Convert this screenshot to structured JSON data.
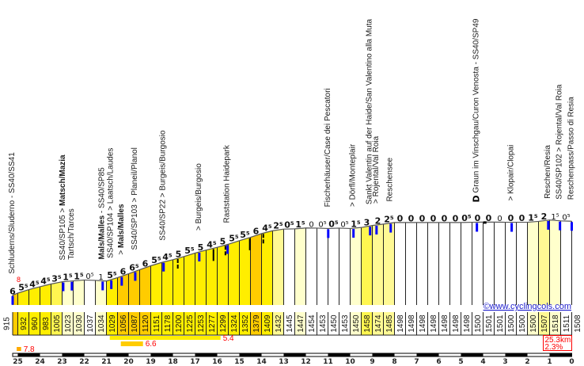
{
  "chart_data": {
    "type": "area",
    "title": "",
    "xlabel": "",
    "ylabel": "",
    "distance_km": 25.3,
    "step_km": 0.5,
    "start": {
      "km": 25.3,
      "elevation": 915
    },
    "first_segment": {
      "gradient_label": "6",
      "max_gradient_label": "8"
    },
    "elevations": [
      932,
      960,
      983,
      1005,
      1023,
      1030,
      1037,
      1034,
      1029,
      1056,
      1087,
      1120,
      1151,
      1178,
      1200,
      1225,
      1253,
      1277,
      1299,
      1324,
      1352,
      1379,
      1409,
      1432,
      1445,
      1447,
      1454,
      1453,
      1450,
      1453,
      1450,
      1458,
      1474,
      1485,
      1498,
      1498,
      1498,
      1498,
      1498,
      1498,
      1498,
      1500,
      1501,
      1501,
      1500,
      1500,
      1500,
      1507,
      1518,
      1511,
      1508
    ],
    "gradient_labels": [
      "5⁵",
      "4⁵",
      "4⁵",
      "3⁵",
      "1⁵",
      "1⁵",
      "0⁵",
      "1",
      "5⁵",
      "6",
      "6⁵",
      "6",
      "5⁵",
      "4⁵",
      "5",
      "5⁵",
      "5",
      "4⁵",
      "5",
      "5⁵",
      "5⁵",
      "6",
      "4⁵",
      "2⁵",
      "0⁵",
      "1⁵",
      "0",
      "0⁵",
      "0⁵",
      "0⁵",
      "1⁵",
      "3",
      "2",
      "2⁵",
      "0",
      "0",
      "0",
      "0",
      "0",
      "0",
      "0⁵",
      "0",
      "0",
      "0",
      "0",
      "0",
      "1⁵",
      "2",
      "1⁵",
      "0⁵"
    ],
    "km_ticks": [
      "25",
      "24",
      "23",
      "22",
      "21",
      "20",
      "19",
      "18",
      "17",
      "16",
      "15",
      "14",
      "13",
      "12",
      "11",
      "10",
      "9",
      "8",
      "7",
      "6",
      "5",
      "4",
      "3",
      "2",
      "1",
      "0"
    ],
    "color_scale": [
      {
        "min": 6,
        "color": "#FFCC00"
      },
      {
        "min": 4.5,
        "color": "#FFEE00"
      },
      {
        "min": 3,
        "color": "#FFF650"
      },
      {
        "min": 2,
        "color": "#FFF994"
      },
      {
        "min": 1,
        "color": "#FFFFCC"
      },
      {
        "min": 0,
        "color": "#FFFFFF"
      }
    ],
    "marker_colors": {
      "blue": "#0000FF",
      "black": "#000000"
    },
    "markers": [
      {
        "km": 25.3,
        "type": "blue"
      },
      {
        "km": 22.95,
        "type": "blue"
      },
      {
        "km": 22.56,
        "type": "blue"
      },
      {
        "km": 21.17,
        "type": "blue"
      },
      {
        "km": 20.78,
        "type": "blue"
      },
      {
        "km": 20.31,
        "type": "blue"
      },
      {
        "km": 19.7,
        "type": "blue"
      },
      {
        "km": 18.42,
        "type": "blue"
      },
      {
        "km": 17.78,
        "type": "black-dashed"
      },
      {
        "km": 16.81,
        "type": "blue"
      },
      {
        "km": 16.17,
        "type": "black"
      },
      {
        "km": 15.63,
        "type": "black-dashed"
      },
      {
        "km": 15.53,
        "type": "blue"
      },
      {
        "km": 14.53,
        "type": "black"
      },
      {
        "km": 13.92,
        "type": "black-dashed"
      },
      {
        "km": 10.99,
        "type": "blue"
      },
      {
        "km": 9.85,
        "type": "blue"
      },
      {
        "km": 9.1,
        "type": "blue"
      },
      {
        "km": 8.81,
        "type": "blue"
      },
      {
        "km": 8.17,
        "type": "blue"
      },
      {
        "km": 4.28,
        "type": "blue"
      },
      {
        "km": 3.92,
        "type": "black-dot"
      },
      {
        "km": 2.71,
        "type": "blue"
      },
      {
        "km": 1.06,
        "type": "blue"
      },
      {
        "km": 0.53,
        "type": "blue"
      },
      {
        "km": 0.0,
        "type": "blue"
      }
    ],
    "annotations": [
      {
        "km": 25.3,
        "parts": [
          {
            "t": "Schluderns/Sluderno - SS40/SS41",
            "b": false
          }
        ]
      },
      {
        "km": 22.95,
        "parts": [
          {
            "t": "SS40/SP105 > ",
            "b": false
          },
          {
            "t": "Matsch/Mazia",
            "b": true
          }
        ]
      },
      {
        "km": 22.56,
        "parts": [
          {
            "t": "Tartsch/Tarces",
            "b": false
          }
        ]
      },
      {
        "km": 21.17,
        "parts": [
          {
            "t": "Mals/Malles",
            "b": true
          },
          {
            "t": " - SS40/SP85",
            "b": false
          }
        ]
      },
      {
        "km": 20.78,
        "parts": [
          {
            "t": "SS40/SP104 > Laatsch/Laudes",
            "b": false
          }
        ]
      },
      {
        "km": 20.31,
        "parts": [
          {
            "t": "> ",
            "b": false
          },
          {
            "t": "Mals/Malles",
            "b": true
          }
        ]
      },
      {
        "km": 19.7,
        "parts": [
          {
            "t": "SS40/SP103 > Planeil/Planol",
            "b": false
          }
        ]
      },
      {
        "km": 18.42,
        "parts": [
          {
            "t": "SS40/SP22 > Burgeis/Burgosio",
            "b": false
          }
        ]
      },
      {
        "km": 16.81,
        "parts": [
          {
            "t": "> Burgeis/Burgosio",
            "b": false
          }
        ]
      },
      {
        "km": 15.53,
        "parts": [
          {
            "t": "Raststation Haidepark",
            "b": false
          }
        ]
      },
      {
        "km": 10.99,
        "parts": [
          {
            "t": "Fischerhäuser/Case dei Pescatori",
            "b": false
          }
        ]
      },
      {
        "km": 9.85,
        "parts": [
          {
            "t": "> Dörfl/Monteplair",
            "b": false
          }
        ]
      },
      {
        "km": 9.1,
        "parts": [
          {
            "t": "Sankt Valentin auf der Haide/San Valentino alla Muta",
            "b": false
          }
        ]
      },
      {
        "km": 8.81,
        "parts": [
          {
            "t": "> Rojental/Val Roia",
            "b": false
          }
        ]
      },
      {
        "km": 8.17,
        "parts": [
          {
            "t": "Reschensee",
            "b": false
          }
        ]
      },
      {
        "km": 4.28,
        "symbol": "D",
        "parts": [
          {
            "t": "Graun im Vinschgau/Curon Venosta - SS40/SP49",
            "b": false
          }
        ]
      },
      {
        "km": 2.71,
        "parts": [
          {
            "t": "> Klopair/Clopai",
            "b": false
          }
        ]
      },
      {
        "km": 1.06,
        "parts": [
          {
            "t": "Reschen/Resia",
            "b": false
          }
        ]
      },
      {
        "km": 0.53,
        "parts": [
          {
            "t": "SS40/SP102 > Rojental/Val Roia",
            "b": false
          }
        ]
      },
      {
        "km": 0.0,
        "parts": [
          {
            "t": "Reschenpass/Passo di Resia",
            "b": false
          }
        ]
      }
    ],
    "steepest_sections": [
      {
        "label": "5.4",
        "from_km": 20.85,
        "to_km": 15.85,
        "color": "#FFEE00"
      },
      {
        "label": "6.6",
        "from_km": 20.35,
        "to_km": 19.35,
        "color": "#FFCC00"
      },
      {
        "label": "7.8",
        "from_km": 25.05,
        "to_km": 24.85,
        "color": "#FFAA00"
      }
    ],
    "summary": {
      "distance": "25.3km",
      "avg_gradient": "2.3%"
    },
    "credit": "©www.cyclingcols.com"
  }
}
